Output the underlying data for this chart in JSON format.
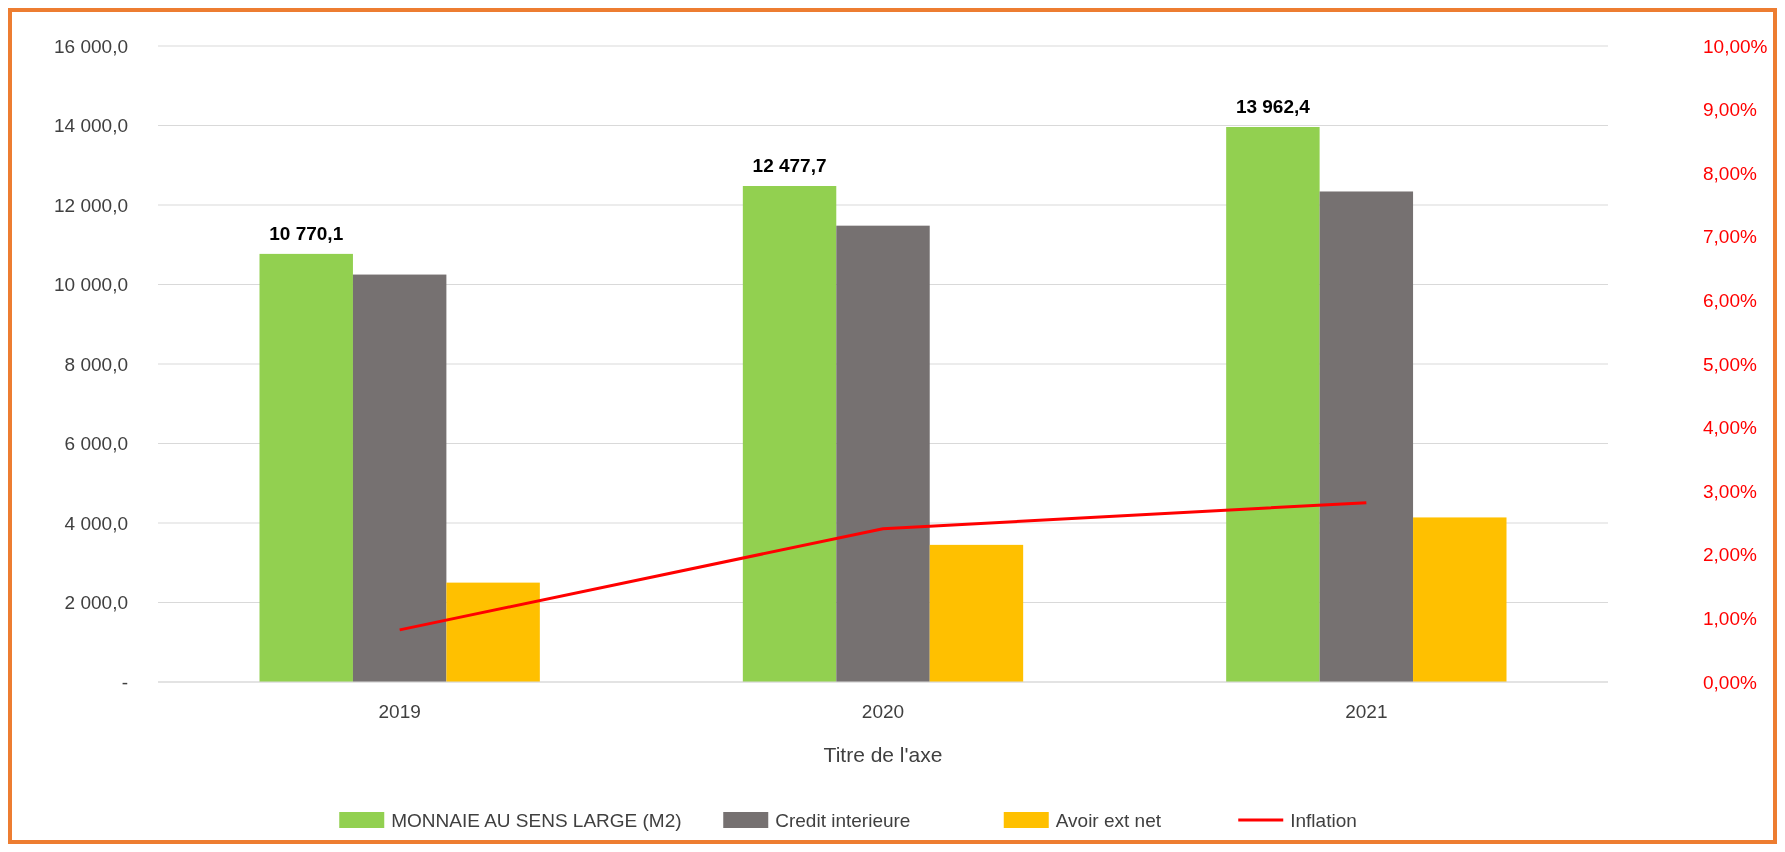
{
  "chart_data": {
    "type": "bar",
    "xlabel": "Titre de l'axe",
    "categories": [
      "2019",
      "2020",
      "2021"
    ],
    "series": [
      {
        "name": "MONNAIE AU SENS LARGE (M2)",
        "color": "#92d050",
        "values": [
          10770.1,
          12477.7,
          13962.4
        ],
        "value_labels": [
          "10 770,1",
          "12 477,7",
          "13 962,4"
        ]
      },
      {
        "name": "Credit interieure",
        "color": "#767171",
        "values": [
          10250,
          11480,
          12340
        ]
      },
      {
        "name": "Avoir ext net",
        "color": "#ffc000",
        "values": [
          2500,
          3450,
          4140
        ]
      },
      {
        "name": "Inflation",
        "type": "line",
        "axis": "y2",
        "color": "#ff0000",
        "values": [
          0.82,
          2.41,
          2.82
        ]
      }
    ],
    "ylim": [
      0,
      16000
    ],
    "yticks": [
      {
        "value": 0,
        "label": "-"
      },
      {
        "value": 2000,
        "label": "2 000,0"
      },
      {
        "value": 4000,
        "label": "4 000,0"
      },
      {
        "value": 6000,
        "label": "6 000,0"
      },
      {
        "value": 8000,
        "label": "8 000,0"
      },
      {
        "value": 10000,
        "label": "10 000,0"
      },
      {
        "value": 12000,
        "label": "12 000,0"
      },
      {
        "value": 14000,
        "label": "14 000,0"
      },
      {
        "value": 16000,
        "label": "16 000,0"
      }
    ],
    "y2lim": [
      0,
      10
    ],
    "y2ticks": [
      {
        "value": 0,
        "label": "0,00%"
      },
      {
        "value": 1,
        "label": "1,00%"
      },
      {
        "value": 2,
        "label": "2,00%"
      },
      {
        "value": 3,
        "label": "3,00%"
      },
      {
        "value": 4,
        "label": "4,00%"
      },
      {
        "value": 5,
        "label": "5,00%"
      },
      {
        "value": 6,
        "label": "6,00%"
      },
      {
        "value": 7,
        "label": "7,00%"
      },
      {
        "value": 8,
        "label": "8,00%"
      },
      {
        "value": 9,
        "label": "9,00%"
      },
      {
        "value": 10,
        "label": "10,00%"
      }
    ],
    "grid": "y",
    "legend": "bottom",
    "line_style": "solid"
  }
}
